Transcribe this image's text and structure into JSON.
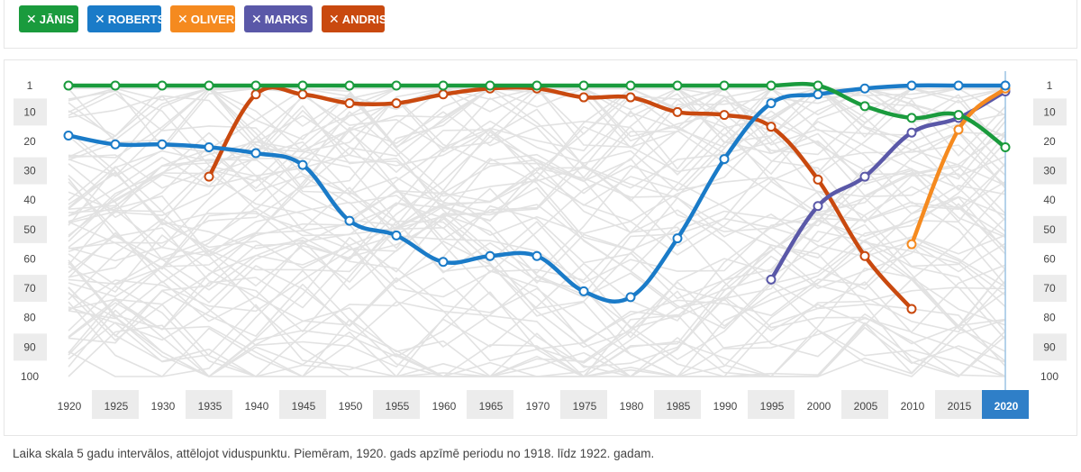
{
  "filters": [
    {
      "label": "JĀNIS",
      "color": "#1a9b3d"
    },
    {
      "label": "ROBERTS",
      "color": "#1a7bc8"
    },
    {
      "label": "OLIVERS",
      "color": "#f58a1f"
    },
    {
      "label": "MARKS",
      "color": "#5a58a8"
    },
    {
      "label": "ANDRIS",
      "color": "#c9490f"
    }
  ],
  "chart_data": {
    "type": "line",
    "x": [
      1920,
      1925,
      1930,
      1935,
      1940,
      1945,
      1950,
      1955,
      1960,
      1965,
      1970,
      1975,
      1980,
      1985,
      1990,
      1995,
      2000,
      2005,
      2010,
      2015,
      2020
    ],
    "y_ticks": [
      1,
      10,
      20,
      30,
      40,
      50,
      60,
      70,
      80,
      90,
      100
    ],
    "ylim": [
      1,
      100
    ],
    "y_inverted": true,
    "highlight_x": 2020,
    "background_lines": "many grey rank lines of other names",
    "series": [
      {
        "name": "JĀNIS",
        "color": "#1a9b3d",
        "values": [
          1,
          1,
          1,
          1,
          1,
          1,
          1,
          1,
          1,
          1,
          1,
          1,
          1,
          1,
          1,
          1,
          1,
          8,
          12,
          11,
          22
        ]
      },
      {
        "name": "ROBERTS",
        "color": "#1a7bc8",
        "values": [
          18,
          21,
          21,
          22,
          24,
          28,
          47,
          52,
          61,
          59,
          59,
          71,
          73,
          53,
          26,
          7,
          4,
          2,
          1,
          1,
          1
        ]
      },
      {
        "name": "OLIVERS",
        "color": "#f58a1f",
        "values": [
          null,
          null,
          null,
          null,
          null,
          null,
          null,
          null,
          null,
          null,
          null,
          null,
          null,
          null,
          null,
          null,
          null,
          null,
          55,
          16,
          2
        ]
      },
      {
        "name": "MARKS",
        "color": "#5a58a8",
        "values": [
          null,
          null,
          null,
          null,
          null,
          null,
          null,
          null,
          null,
          null,
          null,
          null,
          null,
          null,
          null,
          67,
          42,
          32,
          17,
          12,
          3
        ]
      },
      {
        "name": "ANDRIS",
        "color": "#c9490f",
        "values": [
          null,
          null,
          null,
          32,
          4,
          4,
          7,
          7,
          4,
          2,
          2,
          5,
          5,
          10,
          11,
          15,
          33,
          59,
          77,
          null,
          null
        ]
      }
    ]
  },
  "footnote": "Laika skala 5 gadu intervālos, attēlojot viduspunktu. Piemēram, 1920. gads apzīmē periodu no 1918. līdz 1922. gadam."
}
